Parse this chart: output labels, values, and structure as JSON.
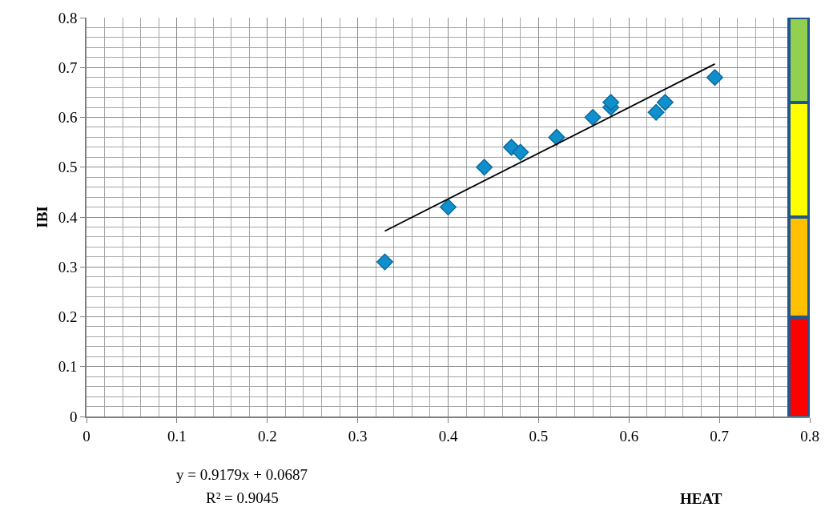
{
  "chart_data": {
    "type": "scatter",
    "xlabel": "HEAT",
    "ylabel": "IBI",
    "annotations": [
      "y = 0.9179x + 0.0687",
      "R² = 0.9045"
    ],
    "series": [
      {
        "color": "#0f8fcc",
        "marker": "diamond",
        "x": [
          0.33,
          0.4,
          0.44,
          0.47,
          0.48,
          0.52,
          0.56,
          0.58,
          0.58,
          0.63,
          0.64,
          0.695
        ],
        "values": [
          0.31,
          0.42,
          0.5,
          0.54,
          0.53,
          0.56,
          0.6,
          0.62,
          0.63,
          0.61,
          0.63,
          0.68
        ]
      },
      {
        "type": "line",
        "color": "#000000",
        "marker": "none",
        "x": [
          0.33,
          0.695
        ],
        "values": [
          0.372,
          0.707
        ]
      },
      {
        "type": "bar",
        "color": "#ff0000",
        "x": [
          0.788
        ],
        "values": [
          0.2
        ]
      },
      {
        "type": "bar",
        "color": "#ffc000",
        "x": [
          0.788
        ],
        "values": [
          0.2
        ]
      },
      {
        "type": "bar",
        "color": "#ffff00",
        "x": [
          0.788
        ],
        "values": [
          0.23
        ]
      },
      {
        "type": "bar",
        "color": "#92d050",
        "x": [
          0.788
        ],
        "values": [
          0.17
        ]
      }
    ],
    "stacked": true,
    "xlim": [
      0,
      0.8
    ],
    "ylim": [
      0,
      0.8
    ],
    "xticks": [
      0,
      0.1,
      0.2,
      0.3,
      0.4,
      0.5,
      0.6,
      0.7,
      0.8
    ],
    "yticks": [
      0,
      0.1,
      0.2,
      0.3,
      0.4,
      0.5,
      0.6,
      0.7,
      0.8
    ],
    "grid": true
  }
}
